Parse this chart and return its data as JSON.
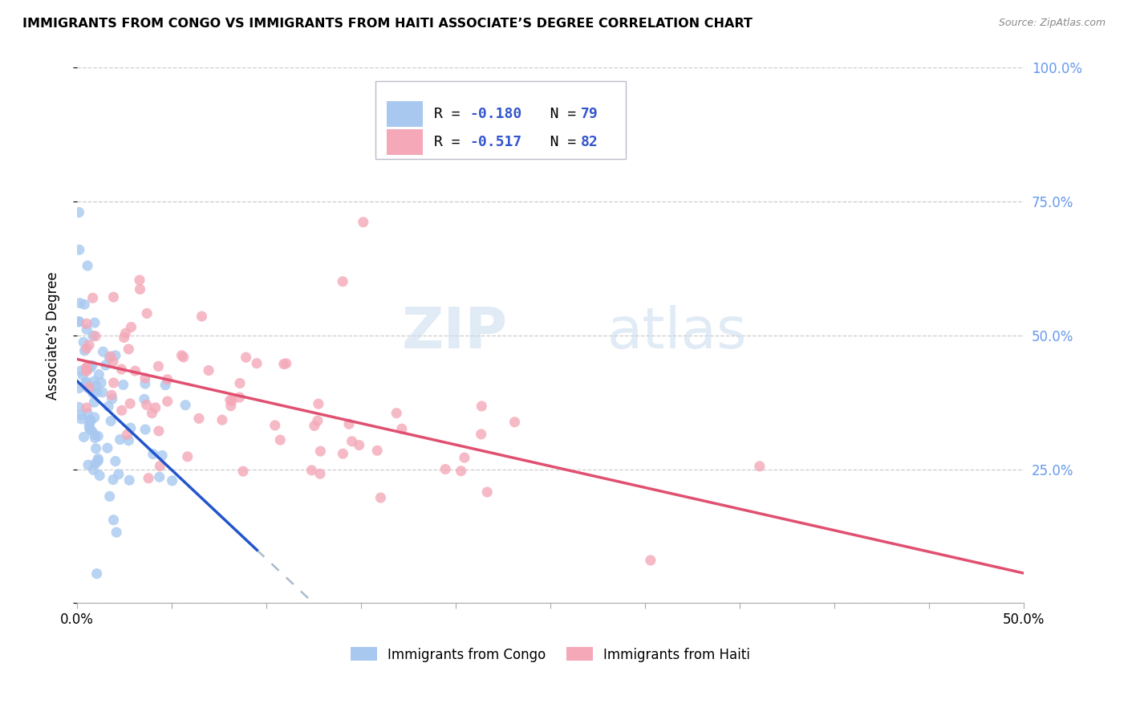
{
  "title": "IMMIGRANTS FROM CONGO VS IMMIGRANTS FROM HAITI ASSOCIATE’S DEGREE CORRELATION CHART",
  "source": "Source: ZipAtlas.com",
  "ylabel": "Associate’s Degree",
  "xlim": [
    0.0,
    0.5
  ],
  "ylim": [
    0.0,
    1.0
  ],
  "xticks": [
    0.0,
    0.05,
    0.1,
    0.15,
    0.2,
    0.25,
    0.3,
    0.35,
    0.4,
    0.45,
    0.5
  ],
  "xticklabels": [
    "0.0%",
    "",
    "",
    "",
    "",
    "",
    "",
    "",
    "",
    "",
    "50.0%"
  ],
  "yticks": [
    0.0,
    0.25,
    0.5,
    0.75,
    1.0
  ],
  "yticklabels_right": [
    "",
    "25.0%",
    "50.0%",
    "75.0%",
    "100.0%"
  ],
  "congo_R": -0.18,
  "congo_N": 79,
  "haiti_R": -0.517,
  "haiti_N": 82,
  "congo_color": "#A8C8F0",
  "haiti_color": "#F4A8B8",
  "congo_line_color": "#2255CC",
  "haiti_line_color": "#E05070",
  "congo_line_extent": 0.09,
  "watermark_zip": "ZIP",
  "watermark_atlas": "atlas",
  "background_color": "#FFFFFF",
  "grid_color": "#CCCCCC",
  "right_tick_color": "#6699EE",
  "legend_r_color": "#3355CC",
  "legend_n_color": "#3355CC"
}
